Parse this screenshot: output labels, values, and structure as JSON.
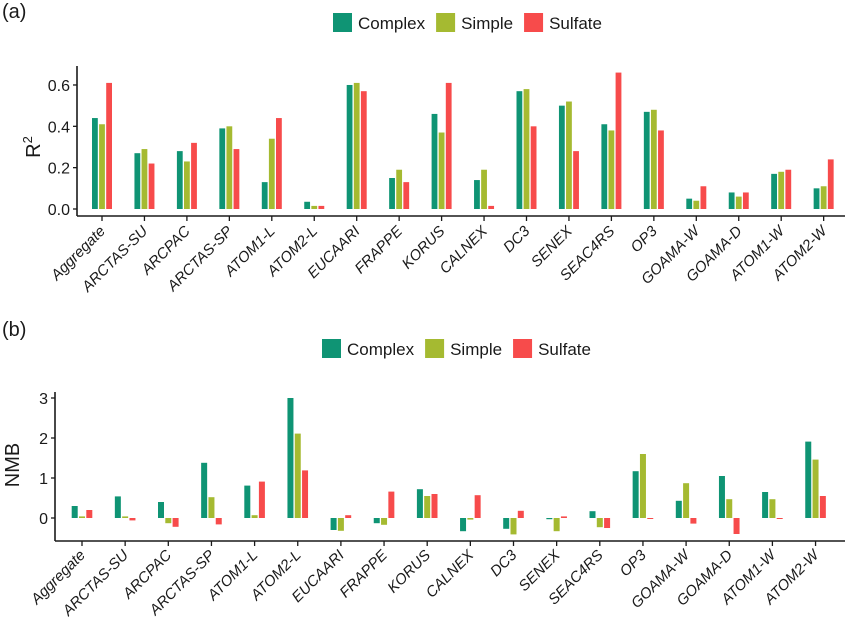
{
  "figure": {
    "legend": [
      {
        "name": "Complex",
        "color": "#0f9474"
      },
      {
        "name": "Simple",
        "color": "#a5ba31"
      },
      {
        "name": "Sulfate",
        "color": "#f74b4b"
      }
    ]
  },
  "chart_data": [
    {
      "panel_label": "(a)",
      "type": "bar",
      "title": "",
      "xlabel": "",
      "ylabel": "R",
      "ylabel_superscript": "2",
      "ylim": [
        0,
        0.68
      ],
      "yticks": [
        0.0,
        0.2,
        0.4,
        0.6
      ],
      "ytick_labels": [
        "0.0",
        "0.2",
        "0.4",
        "0.6"
      ],
      "grid": false,
      "legend_position": "top-center",
      "categories": [
        "Aggregate",
        "ARCTAS-SU",
        "ARCPAC",
        "ARCTAS-SP",
        "ATOM1-L",
        "ATOM2-L",
        "EUCAARI",
        "FRAPPE",
        "KORUS",
        "CALNEX",
        "DC3",
        "SENEX",
        "SEAC4RS",
        "OP3",
        "GOAMA-W",
        "GOAMA-D",
        "ATOM1-W",
        "ATOM2-W"
      ],
      "series": [
        {
          "name": "Complex",
          "color": "#0f9474",
          "values": [
            0.44,
            0.27,
            0.28,
            0.39,
            0.13,
            0.035,
            0.6,
            0.15,
            0.46,
            0.14,
            0.57,
            0.5,
            0.41,
            0.47,
            0.05,
            0.08,
            0.17,
            0.1
          ]
        },
        {
          "name": "Simple",
          "color": "#a5ba31",
          "values": [
            0.41,
            0.29,
            0.23,
            0.4,
            0.34,
            0.015,
            0.61,
            0.19,
            0.37,
            0.19,
            0.58,
            0.52,
            0.38,
            0.48,
            0.04,
            0.06,
            0.18,
            0.11
          ]
        },
        {
          "name": "Sulfate",
          "color": "#f74b4b",
          "values": [
            0.61,
            0.22,
            0.32,
            0.29,
            0.44,
            0.015,
            0.57,
            0.13,
            0.61,
            0.015,
            0.4,
            0.28,
            0.66,
            0.38,
            0.11,
            0.08,
            0.19,
            0.24
          ]
        }
      ]
    },
    {
      "panel_label": "(b)",
      "type": "bar",
      "title": "",
      "xlabel": "",
      "ylabel": "NMB",
      "ylim": [
        -0.55,
        3.15
      ],
      "yticks": [
        0,
        1,
        2,
        3
      ],
      "ytick_labels": [
        "0",
        "1",
        "2",
        "3"
      ],
      "grid": false,
      "legend_position": "top-center",
      "categories": [
        "Aggregate",
        "ARCTAS-SU",
        "ARCPAC",
        "ARCTAS-SP",
        "ATOM1-L",
        "ATOM2-L",
        "EUCAARI",
        "FRAPPE",
        "KORUS",
        "CALNEX",
        "DC3",
        "SENEX",
        "SEAC4RS",
        "OP3",
        "GOAMA-W",
        "GOAMA-D",
        "ATOM1-W",
        "ATOM2-W"
      ],
      "series": [
        {
          "name": "Complex",
          "color": "#0f9474",
          "values": [
            0.3,
            0.54,
            0.4,
            1.38,
            0.81,
            3.0,
            -0.3,
            -0.13,
            0.72,
            -0.33,
            -0.27,
            -0.03,
            0.17,
            1.17,
            0.43,
            1.05,
            0.65,
            1.91
          ]
        },
        {
          "name": "Simple",
          "color": "#a5ba31",
          "values": [
            0.04,
            0.04,
            -0.13,
            0.52,
            0.07,
            2.11,
            -0.32,
            -0.17,
            0.55,
            -0.04,
            -0.41,
            -0.33,
            -0.23,
            1.6,
            0.87,
            0.47,
            0.47,
            1.46
          ]
        },
        {
          "name": "Sulfate",
          "color": "#f74b4b",
          "values": [
            0.2,
            -0.06,
            -0.22,
            -0.16,
            0.91,
            1.19,
            0.07,
            0.66,
            0.6,
            0.57,
            0.18,
            0.04,
            -0.25,
            0.0,
            -0.14,
            -0.4,
            -0.01,
            0.55
          ]
        }
      ]
    }
  ]
}
